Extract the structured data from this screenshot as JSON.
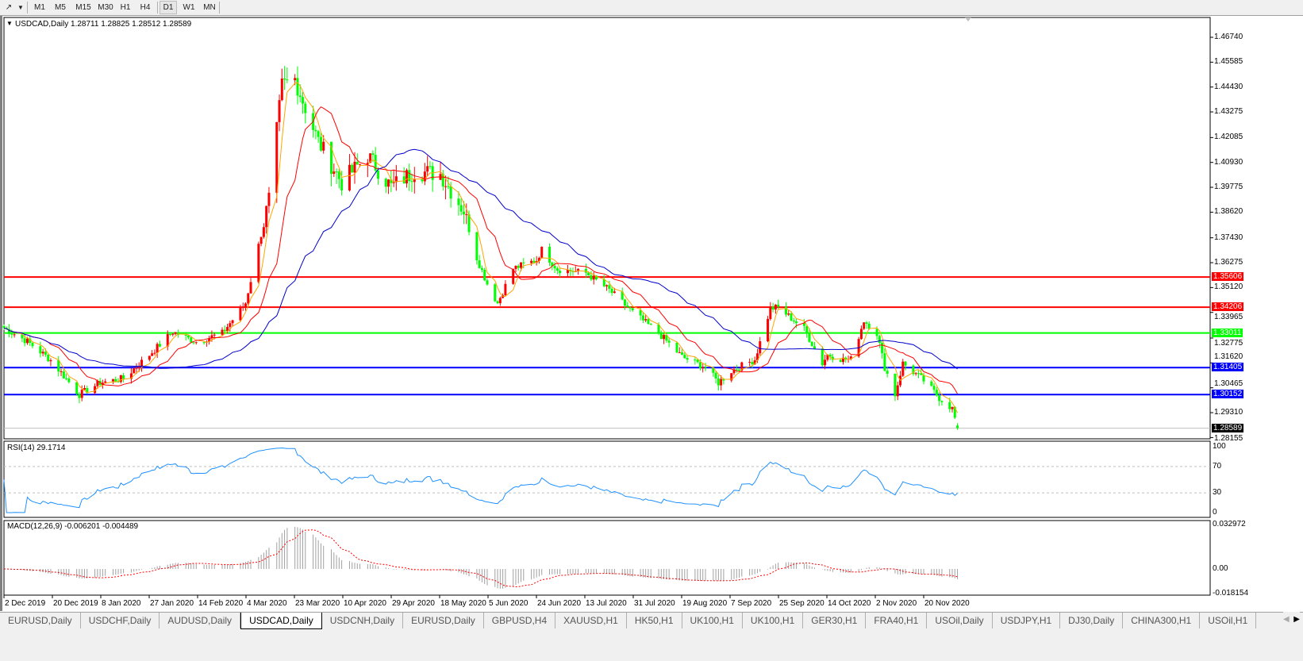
{
  "toolbar": {
    "tool_icon": "line-tools-icon",
    "timeframes": [
      "M1",
      "M5",
      "M15",
      "M30",
      "H1",
      "H4",
      "D1",
      "W1",
      "MN"
    ],
    "active_timeframe": "D1"
  },
  "chart": {
    "header": "USDCAD,Daily  1.28711 1.28825 1.28512 1.28589",
    "up_color": "#ff0000",
    "down_color": "#00ff00",
    "ma_colors": [
      "#ffa500",
      "#ff0000",
      "#0000cc"
    ],
    "price_ticks": [
      "1.46740",
      "1.45585",
      "1.44430",
      "1.43275",
      "1.42085",
      "1.40930",
      "1.39775",
      "1.38620",
      "1.37430",
      "1.36275",
      "1.35120",
      "1.33965",
      "1.32775",
      "1.31620",
      "1.30465",
      "1.29310",
      "1.28155"
    ],
    "levels": [
      {
        "value": "1.35606",
        "color": "#ff0000"
      },
      {
        "value": "1.34206",
        "color": "#ff0000"
      },
      {
        "value": "1.33011",
        "color": "#00ff00"
      },
      {
        "value": "1.31405",
        "color": "#0000ff"
      },
      {
        "value": "1.30152",
        "color": "#0000ff"
      }
    ],
    "current_price": "1.28589",
    "date_labels": [
      "2 Dec 2019",
      "20 Dec 2019",
      "8 Jan 2020",
      "27 Jan 2020",
      "14 Feb 2020",
      "4 Mar 2020",
      "23 Mar 2020",
      "10 Apr 2020",
      "29 Apr 2020",
      "18 May 2020",
      "5 Jun 2020",
      "24 Jun 2020",
      "13 Jul 2020",
      "31 Jul 2020",
      "19 Aug 2020",
      "7 Sep 2020",
      "25 Sep 2020",
      "14 Oct 2020",
      "2 Nov 2020",
      "20 Nov 2020"
    ]
  },
  "rsi": {
    "label": "RSI(14) 29.1714",
    "ticks": [
      "100",
      "70",
      "30",
      "0"
    ],
    "color": "#1e90ff"
  },
  "macd": {
    "label": "MACD(12,26,9) -0.006201 -0.004489",
    "ticks": [
      "0.032972",
      "0.00",
      "-0.018154"
    ],
    "signal_color": "#ff0000",
    "hist_color": "#a0a0a0"
  },
  "chart_data": {
    "type": "candlestick",
    "title": "USDCAD,Daily",
    "ylim": [
      1.28155,
      1.4674
    ],
    "closes": [
      [
        "2019-12-02",
        1.3324
      ],
      [
        "2019-12-11",
        1.3262
      ],
      [
        "2019-12-20",
        1.3175
      ],
      [
        "2019-12-31",
        1.3015
      ],
      [
        "2020-01-08",
        1.307
      ],
      [
        "2020-01-17",
        1.309
      ],
      [
        "2020-01-27",
        1.32
      ],
      [
        "2020-02-05",
        1.3306
      ],
      [
        "2020-02-14",
        1.326
      ],
      [
        "2020-02-24",
        1.33
      ],
      [
        "2020-03-04",
        1.344
      ],
      [
        "2020-03-13",
        1.392
      ],
      [
        "2020-03-18",
        1.445
      ],
      [
        "2020-03-23",
        1.448
      ],
      [
        "2020-03-26",
        1.4379
      ],
      [
        "2020-04-01",
        1.419
      ],
      [
        "2020-04-10",
        1.4
      ],
      [
        "2020-04-20",
        1.4125
      ],
      [
        "2020-04-29",
        1.3979
      ],
      [
        "2020-05-08",
        1.4052
      ],
      [
        "2020-05-18",
        1.404
      ],
      [
        "2020-05-27",
        1.387
      ],
      [
        "2020-06-01",
        1.365
      ],
      [
        "2020-06-05",
        1.353
      ],
      [
        "2020-06-09",
        1.344
      ],
      [
        "2020-06-15",
        1.36
      ],
      [
        "2020-06-24",
        1.364
      ],
      [
        "2020-06-26",
        1.3688
      ],
      [
        "2020-07-02",
        1.3597
      ],
      [
        "2020-07-13",
        1.358
      ],
      [
        "2020-07-22",
        1.35
      ],
      [
        "2020-07-31",
        1.3397
      ],
      [
        "2020-08-10",
        1.33
      ],
      [
        "2020-08-19",
        1.319
      ],
      [
        "2020-08-28",
        1.3142
      ],
      [
        "2020-09-02",
        1.307
      ],
      [
        "2020-09-07",
        1.3125
      ],
      [
        "2020-09-16",
        1.3178
      ],
      [
        "2020-09-22",
        1.3415
      ],
      [
        "2020-09-25",
        1.342
      ],
      [
        "2020-10-01",
        1.336
      ],
      [
        "2020-10-05",
        1.332
      ],
      [
        "2020-10-12",
        1.316
      ],
      [
        "2020-10-14",
        1.32
      ],
      [
        "2020-10-20",
        1.3178
      ],
      [
        "2020-10-23",
        1.3178
      ],
      [
        "2020-10-28",
        1.336
      ],
      [
        "2020-11-02",
        1.33
      ],
      [
        "2020-11-05",
        1.3142
      ],
      [
        "2020-11-09",
        1.3015
      ],
      [
        "2020-11-12",
        1.316
      ],
      [
        "2020-11-20",
        1.308
      ],
      [
        "2020-11-26",
        1.3
      ],
      [
        "2020-12-01",
        1.295
      ],
      [
        "2020-12-03",
        1.28589
      ]
    ],
    "last_bar": {
      "open": 1.28711,
      "high": 1.28825,
      "low": 1.28512,
      "close": 1.28589
    },
    "moving_averages": [
      "short",
      "medium",
      "long"
    ],
    "indicators": [
      "RSI(14)",
      "MACD(12,26,9)"
    ]
  },
  "tabs": [
    "EURUSD,Daily",
    "USDCHF,Daily",
    "AUDUSD,Daily",
    "USDCAD,Daily",
    "USDCNH,Daily",
    "EURUSD,Daily",
    "GBPUSD,H4",
    "XAUUSD,H1",
    "HK50,H1",
    "UK100,H1",
    "UK100,H1",
    "GER30,H1",
    "FRA40,H1",
    "USOil,Daily",
    "USDJPY,H1",
    "DJ30,Daily",
    "CHINA300,H1",
    "USOil,H1"
  ],
  "active_tab": "USDCAD,Daily"
}
